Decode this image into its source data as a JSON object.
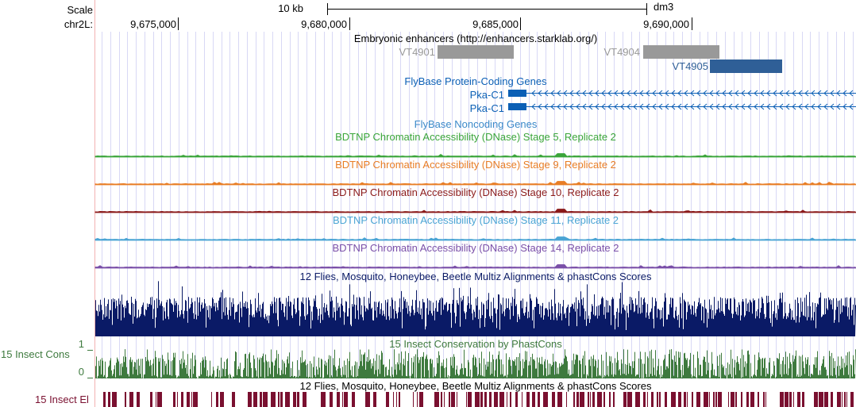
{
  "ruler": {
    "scale_label": "Scale",
    "scale_bar_label": "10 kb",
    "assembly": "dm3",
    "chrom_label": "chr2L:",
    "positions": [
      "9,675,000",
      "9,680,000",
      "9,685,000",
      "9,690,000"
    ]
  },
  "tracks": {
    "enhancers": {
      "title": "Embryonic enhancers (http://enhancers.starklab.org/)",
      "items": [
        {
          "name": "VT4901",
          "color": "#999999"
        },
        {
          "name": "VT4904",
          "color": "#999999"
        },
        {
          "name": "VT4905",
          "color": "#2f5f97"
        }
      ]
    },
    "protein_genes": {
      "title": "FlyBase Protein-Coding Genes",
      "color": "#0b5fb5",
      "genes": [
        {
          "name": "Pka-C1"
        },
        {
          "name": "Pka-C1"
        }
      ]
    },
    "noncoding": {
      "title": "FlyBase Noncoding Genes",
      "color": "#3b89c9"
    },
    "dnase": [
      {
        "title": "BDTNP Chromatin Accessibility (DNase) Stage 5, Replicate 2",
        "color": "#3aa53a"
      },
      {
        "title": "BDTNP Chromatin Accessibility (DNase) Stage 9, Replicate 2",
        "color": "#e87d25"
      },
      {
        "title": "BDTNP Chromatin Accessibility (DNase) Stage 10, Replicate 2",
        "color": "#8b1a1a"
      },
      {
        "title": "BDTNP Chromatin Accessibility (DNase) Stage 11, Replicate 2",
        "color": "#4aa4d4"
      },
      {
        "title": "BDTNP Chromatin Accessibility (DNase) Stage 14, Replicate 2",
        "color": "#7a4fa8"
      }
    ],
    "multiz": {
      "title": "12 Flies, Mosquito, Honeybee, Beetle Multiz Alignments & phastCons Scores",
      "color": "#0a1a66"
    },
    "insect_cons": {
      "title": "15 Insect Conservation by PhastCons",
      "side_label": "15 Insect Cons",
      "max_label": "1",
      "min_label": "0",
      "color": "#3e7a3e"
    },
    "multiz2": {
      "title": "12 Flies, Mosquito, Honeybee, Beetle Multiz Alignments & phastCons Scores"
    },
    "insect_el": {
      "side_label": "15 Insect El",
      "color": "#7a1030"
    }
  }
}
